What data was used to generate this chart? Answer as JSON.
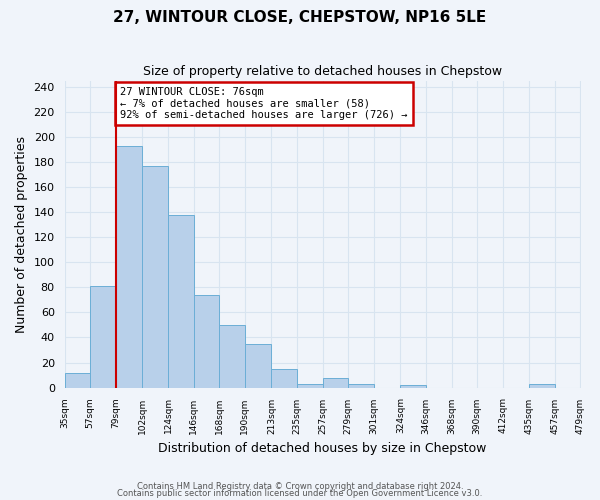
{
  "title": "27, WINTOUR CLOSE, CHEPSTOW, NP16 5LE",
  "subtitle": "Size of property relative to detached houses in Chepstow",
  "xlabel": "Distribution of detached houses by size in Chepstow",
  "ylabel": "Number of detached properties",
  "bar_values": [
    12,
    81,
    193,
    177,
    138,
    74,
    50,
    35,
    15,
    3,
    8,
    3,
    0,
    2,
    0,
    0,
    0,
    0,
    3,
    0
  ],
  "bin_edges": [
    35,
    57,
    79,
    102,
    124,
    146,
    168,
    190,
    213,
    235,
    257,
    279,
    301,
    324,
    346,
    368,
    390,
    412,
    435,
    457,
    479
  ],
  "x_labels": [
    "35sqm",
    "57sqm",
    "79sqm",
    "102sqm",
    "124sqm",
    "146sqm",
    "168sqm",
    "190sqm",
    "213sqm",
    "235sqm",
    "257sqm",
    "279sqm",
    "301sqm",
    "324sqm",
    "346sqm",
    "368sqm",
    "390sqm",
    "412sqm",
    "435sqm",
    "457sqm",
    "479sqm"
  ],
  "bar_color": "#b8d0ea",
  "bar_edge_color": "#6baed6",
  "vline_x": 79,
  "vline_color": "#cc0000",
  "annotation_box_text": "27 WINTOUR CLOSE: 76sqm\n← 7% of detached houses are smaller (58)\n92% of semi-detached houses are larger (726) →",
  "annotation_box_color": "#cc0000",
  "ylim": [
    0,
    245
  ],
  "yticks": [
    0,
    20,
    40,
    60,
    80,
    100,
    120,
    140,
    160,
    180,
    200,
    220,
    240
  ],
  "bg_color": "#f0f4fa",
  "grid_color": "#d8e4f0",
  "footer_line1": "Contains HM Land Registry data © Crown copyright and database right 2024.",
  "footer_line2": "Contains public sector information licensed under the Open Government Licence v3.0."
}
